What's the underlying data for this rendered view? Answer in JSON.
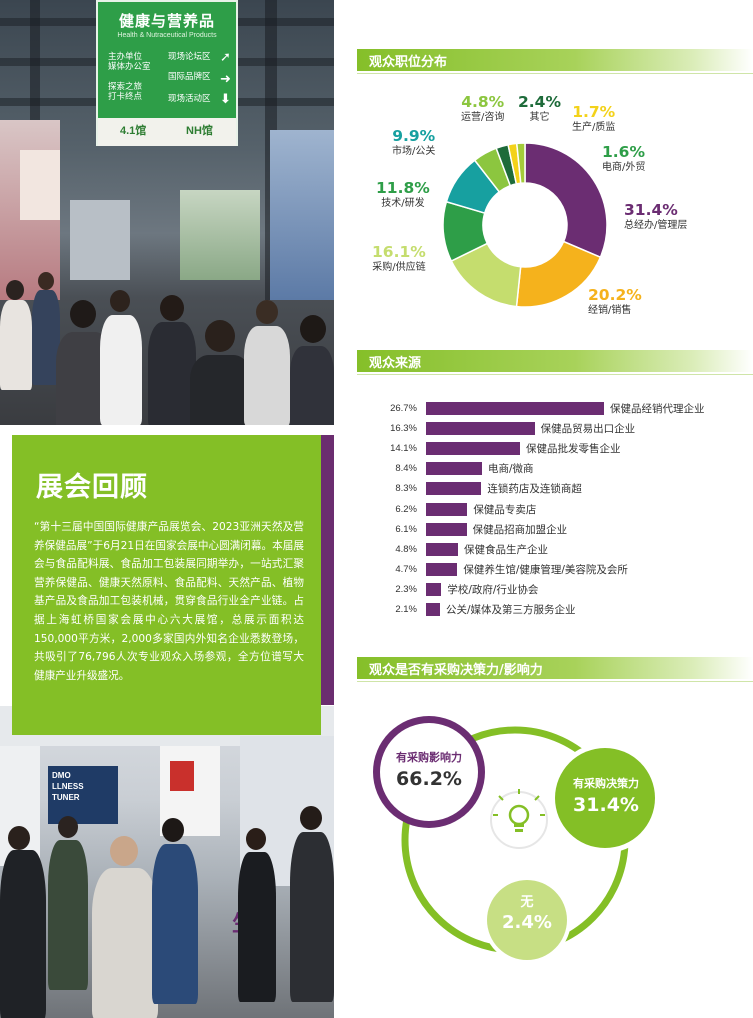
{
  "colors": {
    "green": "#84bf26",
    "purple": "#6b2d72",
    "orange": "#f5b21c",
    "light_green": "#c5dd6e",
    "dark_green": "#2e9e48",
    "teal": "#17a0a0",
    "mid_green": "#8cc63f",
    "yellow": "#f3d21a",
    "lime": "#a4cc3a"
  },
  "photo_top": {
    "sign_title": "健康与营养品",
    "sign_subtitle": "Health & Nutraceutical Products",
    "sign_items": [
      "主办单位\n媒体办公室",
      "现场论坛区",
      "国际品牌区",
      "探索之旅\n打卡终点",
      "现场活动区"
    ],
    "hall_a": "4.1馆",
    "hall_b": "NH馆"
  },
  "photo_bottom": {
    "booth_sign": "DMO\nLLNESS\nTUNER",
    "booth_fragment": "生"
  },
  "intro": {
    "title": "展会回顾",
    "body": "“第十三届中国国际健康产品展览会、2023亚洲天然及营养保健品展”于6月21日在国家会展中心圆满闭幕。本届展会与食品配料展、食品加工包装展同期举办，一站式汇聚营养保健品、健康天然原料、食品配料、天然产品、植物基产品及食品加工包装机械，贯穿食品行业全产业链。占据上海虹桥国家会展中心六大展馆，总展示面积达150,000平方米，2,000多家国内外知名企业悉数登场，共吸引了76,796人次专业观众入场参观，全方位谱写大健康产业升级盛况。"
  },
  "sections": {
    "position_title": "观众职位分布",
    "source_title": "观众来源",
    "decision_title": "观众是否有采购决策力/影响力"
  },
  "chart_data": [
    {
      "type": "pie",
      "title": "观众职位分布",
      "categories": [
        "总经办/管理层",
        "经销/销售",
        "采购/供应链",
        "技术/研发",
        "市场/公关",
        "运营/咨询",
        "其它",
        "生产/质监",
        "电商/外贸"
      ],
      "values": [
        31.4,
        20.2,
        16.1,
        11.8,
        9.9,
        4.8,
        2.4,
        1.7,
        1.6
      ],
      "labels": [
        "31.4%",
        "20.2%",
        "16.1%",
        "11.8%",
        "9.9%",
        "4.8%",
        "2.4%",
        "1.7%",
        "1.6%"
      ],
      "colors": [
        "#6b2d72",
        "#f5b21c",
        "#c5dd6e",
        "#2e9e48",
        "#17a0a0",
        "#8cc63f",
        "#1e6b3a",
        "#f3d21a",
        "#a4cc3a"
      ]
    },
    {
      "type": "bar",
      "title": "观众来源",
      "categories": [
        "保健品经销代理企业",
        "保健品贸易出口企业",
        "保健品批发零售企业",
        "电商/微商",
        "连锁药店及连锁商超",
        "保健品专卖店",
        "保健品招商加盟企业",
        "保健食品生产企业",
        "保健养生馆/健康管理/美容院及会所",
        "学校/政府/行业协会",
        "公关/媒体及第三方服务企业"
      ],
      "values": [
        26.7,
        16.3,
        14.1,
        8.4,
        8.3,
        6.2,
        6.1,
        4.8,
        4.7,
        2.3,
        2.1
      ],
      "labels": [
        "26.7%",
        "16.3%",
        "14.1%",
        "8.4%",
        "8.3%",
        "6.2%",
        "6.1%",
        "4.8%",
        "4.7%",
        "2.3%",
        "2.1%"
      ]
    },
    {
      "type": "pie",
      "title": "观众是否有采购决策力/影响力",
      "categories": [
        "有采购影响力",
        "有采购决策力",
        "无"
      ],
      "values": [
        66.2,
        31.4,
        2.4
      ],
      "labels": [
        "66.2%",
        "31.4%",
        "2.4%"
      ],
      "icon": "lightbulb-icon"
    }
  ]
}
